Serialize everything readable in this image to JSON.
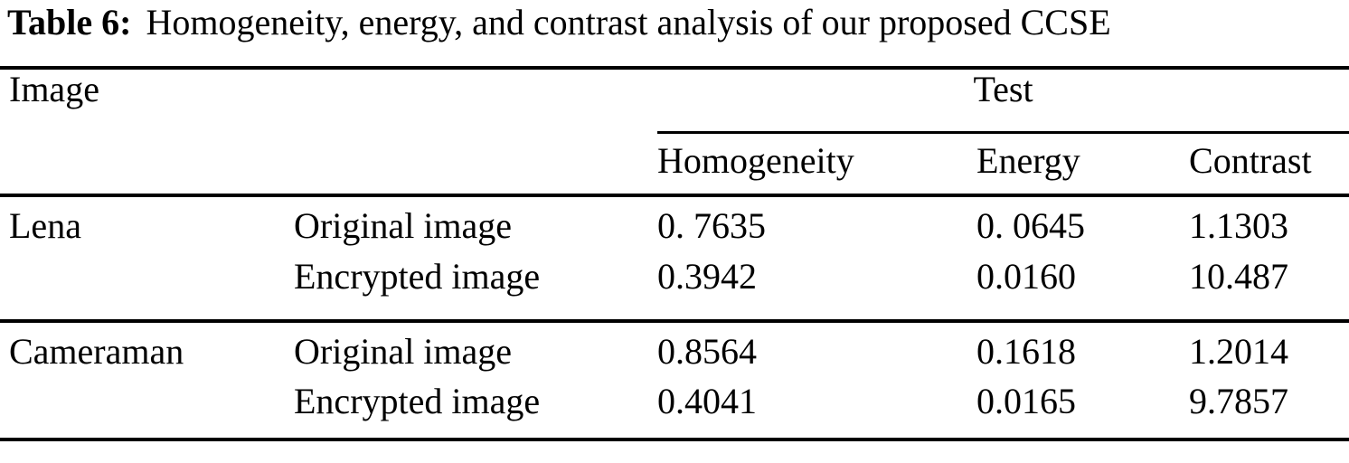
{
  "caption": {
    "label": "Table 6:",
    "text": "Homogeneity, energy, and contrast analysis of our proposed CCSE"
  },
  "table": {
    "image_header": "Image",
    "test_header": "Test",
    "sub_headers": [
      "Homogeneity",
      "Energy",
      "Contrast"
    ],
    "groups": [
      {
        "image": "Lena",
        "rows": [
          {
            "label": "Original image",
            "homogeneity": "0. 7635",
            "energy": "0. 0645",
            "contrast": "1.1303"
          },
          {
            "label": "Encrypted image",
            "homogeneity": "0.3942",
            "energy": "0.0160",
            "contrast": "10.487"
          }
        ]
      },
      {
        "image": "Cameraman",
        "rows": [
          {
            "label": "Original image",
            "homogeneity": "0.8564",
            "energy": "0.1618",
            "contrast": "1.2014"
          },
          {
            "label": "Encrypted image",
            "homogeneity": "0.4041",
            "energy": "0.0165",
            "contrast": "9.7857"
          }
        ]
      }
    ]
  },
  "colors": {
    "background": "#ffffff",
    "text": "#000000",
    "rule": "#000000"
  }
}
